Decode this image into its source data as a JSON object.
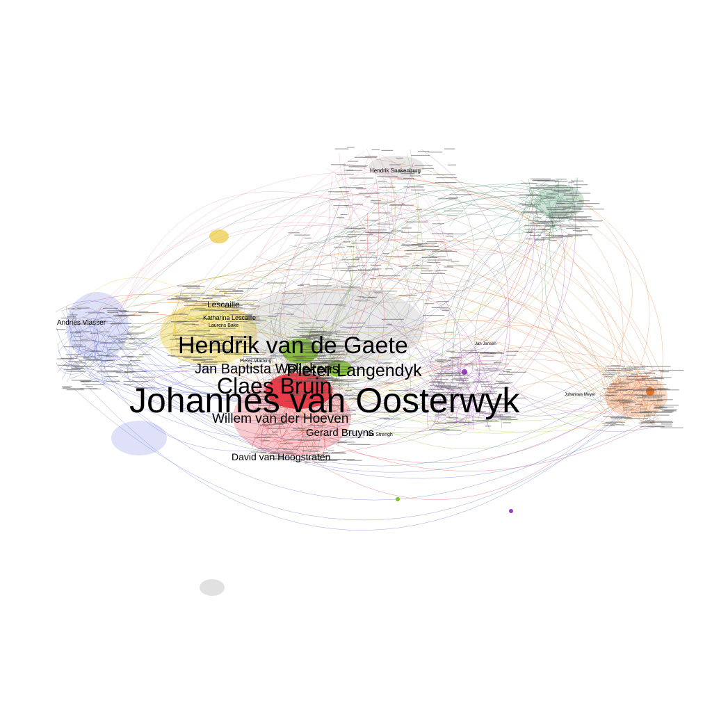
{
  "graph": {
    "clusters": [
      {
        "name": "red",
        "color": "#e8313d"
      },
      {
        "name": "yellow",
        "color": "#e8c21a"
      },
      {
        "name": "blue",
        "color": "#4a5bd6"
      },
      {
        "name": "green",
        "color": "#3d8a5e"
      },
      {
        "name": "orange",
        "color": "#e8742a"
      },
      {
        "name": "purple",
        "color": "#9c3cc4"
      },
      {
        "name": "pink",
        "color": "#e88ab0"
      },
      {
        "name": "lime",
        "color": "#7ac21e"
      },
      {
        "name": "gray",
        "color": "#888888"
      }
    ],
    "labels": [
      {
        "id": "johannes-van-oosterwyk",
        "text": "Johannes van Oosterwyk",
        "cluster": "red"
      },
      {
        "id": "hendrik-van-de-gaete",
        "text": "Hendrik van de Gaete",
        "cluster": "lime"
      },
      {
        "id": "claes-bruin",
        "text": "Claes Bruin",
        "cluster": "lime"
      },
      {
        "id": "pieter-langendyk",
        "text": "Pieter Langendyk",
        "cluster": "purple"
      },
      {
        "id": "jan-baptista-wellekens",
        "text": "Jan Baptista Wellekens",
        "cluster": "yellow"
      },
      {
        "id": "willem-van-der-hoeven",
        "text": "Willem van der Hoeven",
        "cluster": "red"
      },
      {
        "id": "david-van-hoogstraten",
        "text": "David van Hoogstraten",
        "cluster": "red"
      },
      {
        "id": "gerard-bruyns",
        "text": "Gerard Bruyns",
        "cluster": "red"
      },
      {
        "id": "leseailje",
        "text": "Lescaille",
        "cluster": "yellow"
      },
      {
        "id": "katharina-lescaille",
        "text": "Katharina Lescaille",
        "cluster": "yellow"
      },
      {
        "id": "johannes-meyer",
        "text": "Johannes Meyer",
        "cluster": "orange"
      },
      {
        "id": "hendrik-snakenburg",
        "text": "Hendrik Snakenburg",
        "cluster": "pink"
      },
      {
        "id": "jan-jansen",
        "text": "Jan Jansen",
        "cluster": "blue"
      },
      {
        "id": "andries-vlasser",
        "text": "Andries Vlasser",
        "cluster": "blue"
      },
      {
        "id": "laurens-bake",
        "text": "Laurens Bake",
        "cluster": "yellow"
      },
      {
        "id": "pieter-vlaming",
        "text": "Pieter Vlaming",
        "cluster": "gray"
      },
      {
        "id": "jan-strengh",
        "text": "Jan Strengh",
        "cluster": "red"
      }
    ]
  }
}
